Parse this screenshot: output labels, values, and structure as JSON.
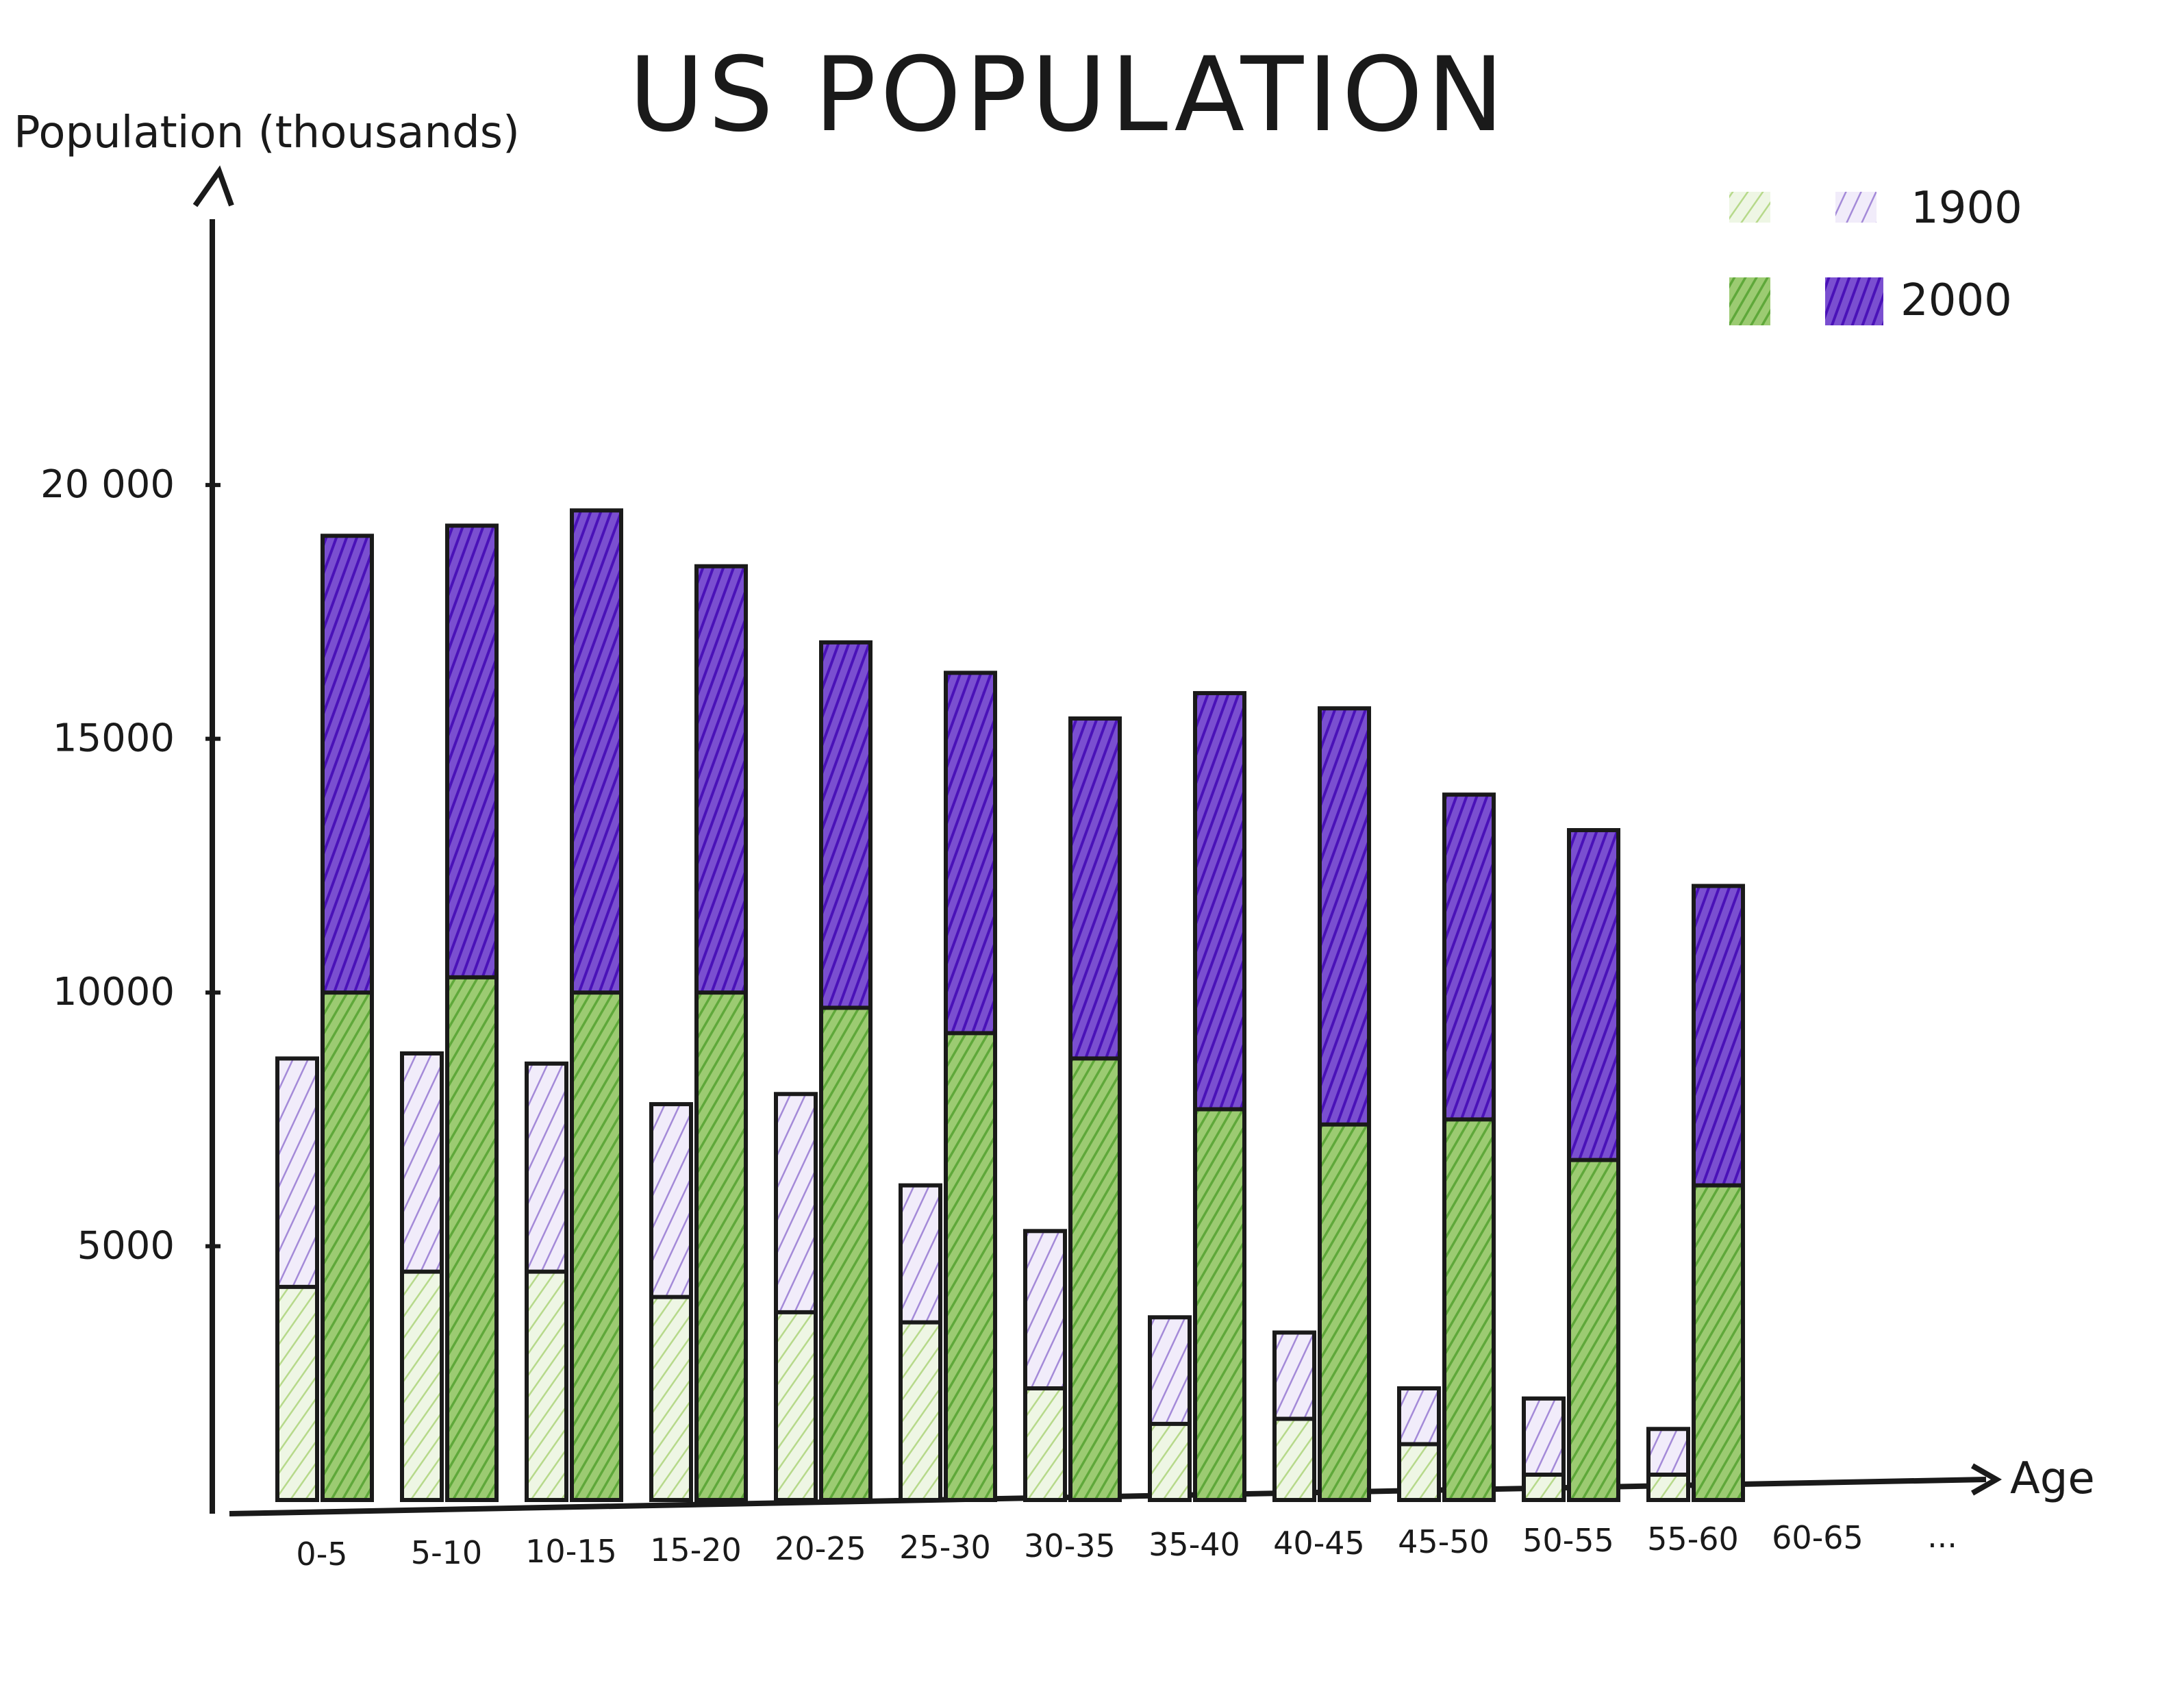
{
  "chart_data": {
    "type": "bar",
    "title": "US POPULATION",
    "ylabel": "Population (thousands)",
    "xlabel": "Age",
    "ylim": [
      0,
      22000
    ],
    "yticks": [
      {
        "value": 5000,
        "label": "5000"
      },
      {
        "value": 10000,
        "label": "10000"
      },
      {
        "value": 15000,
        "label": "15000"
      },
      {
        "value": 20000,
        "label": "20 000"
      }
    ],
    "categories": [
      "0-5",
      "5-10",
      "10-15",
      "15-20",
      "20-25",
      "25-30",
      "30-35",
      "35-40",
      "40-45",
      "45-50",
      "50-55",
      "55-60",
      "60-65",
      "..."
    ],
    "series": [
      {
        "name": "1900",
        "total": [
          8700,
          8800,
          8600,
          7800,
          8000,
          6200,
          5300,
          3600,
          3300,
          2200,
          2000,
          1400,
          null,
          null
        ],
        "lower": [
          4200,
          4500,
          4500,
          4000,
          3700,
          3500,
          2200,
          1500,
          1600,
          1100,
          500,
          500,
          null,
          null
        ]
      },
      {
        "name": "2000",
        "total": [
          19000,
          19200,
          19500,
          18400,
          16900,
          16300,
          15400,
          15900,
          15600,
          13900,
          13200,
          12100,
          null,
          null
        ],
        "lower": [
          10000,
          10300,
          10000,
          10000,
          9700,
          9200,
          8700,
          7700,
          7400,
          7500,
          6700,
          6200,
          null,
          null
        ]
      }
    ],
    "legend": [
      {
        "label": "1900",
        "colors": [
          "#9cc66a",
          "#8a6ad2"
        ]
      },
      {
        "label": "2000",
        "colors": [
          "#5fa83a",
          "#4a12b8"
        ]
      }
    ],
    "legend_position": "top-right",
    "grid": false
  },
  "colors": {
    "ink": "#1a1a1a",
    "green_light": "#b6d98a",
    "green_dark": "#6fb545",
    "purple_light": "#a48ad8",
    "purple_dark": "#4a12b8"
  }
}
